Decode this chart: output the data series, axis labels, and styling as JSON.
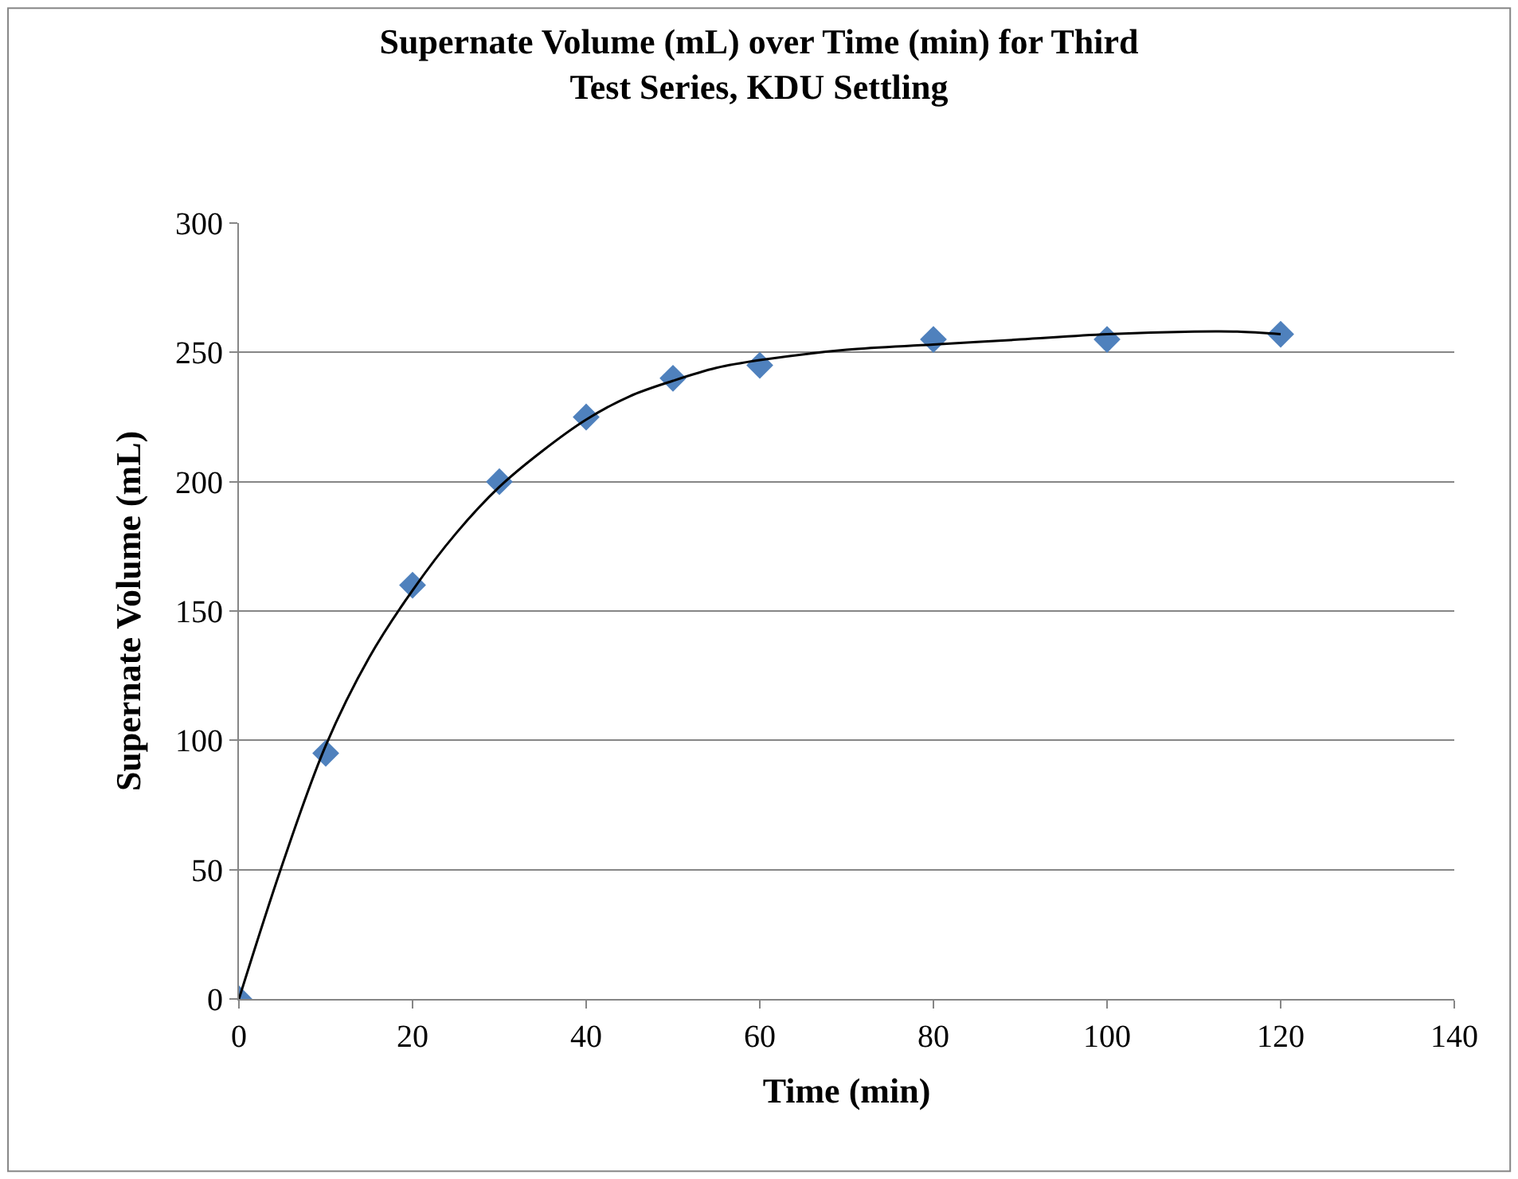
{
  "chart_data": {
    "type": "scatter",
    "title": "Supernate Volume (mL) over Time (min) for Third Test Series, KDU Settling",
    "xlabel": "Time (min)",
    "ylabel": "Supernate Volume (mL)",
    "xlim": [
      0,
      140
    ],
    "xticks": [
      0,
      20,
      40,
      60,
      80,
      100,
      120,
      140
    ],
    "ylim": [
      0,
      300
    ],
    "yticks": [
      0,
      50,
      100,
      150,
      200,
      250,
      300
    ],
    "grid": "y",
    "series": [
      {
        "marker": "diamond",
        "color": "#4f81bd",
        "x": [
          0,
          10,
          20,
          30,
          40,
          50,
          60,
          80,
          100,
          120
        ],
        "values": [
          0,
          95,
          160,
          200,
          225,
          240,
          245,
          255,
          255,
          257
        ]
      },
      {
        "type": "line",
        "color": "#000000",
        "line_style": "solid",
        "x": [
          0,
          5,
          10,
          15,
          20,
          25,
          30,
          35,
          40,
          45,
          50,
          55,
          60,
          70,
          80,
          90,
          100,
          110,
          115,
          120
        ],
        "values": [
          0,
          52,
          98,
          132,
          158,
          180,
          198,
          212,
          224,
          233,
          239,
          244,
          247,
          251,
          253,
          255,
          257,
          258,
          258,
          257
        ]
      }
    ]
  }
}
